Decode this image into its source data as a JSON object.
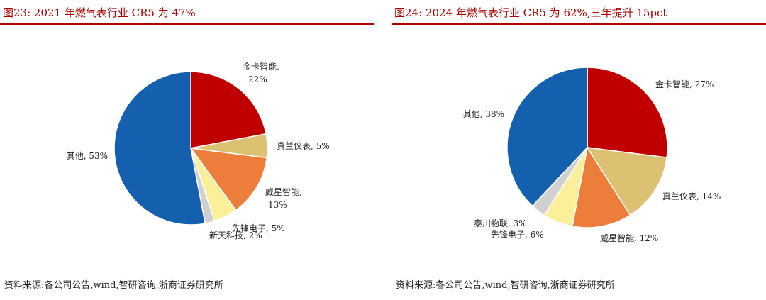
{
  "panels": [
    {
      "title": "图23:  2021 年燃气表行业 CR5 为 47%",
      "source": "资料来源:各公司公告,wind,智研咨询,浙商证券研究所"
    },
    {
      "title": "图24:  2024 年燃气表行业 CR5 为 62%,三年提升 15pct",
      "source": "资料来源:各公司公告,wind,智研咨询,浙商证券研究所"
    }
  ],
  "chart_data": [
    {
      "type": "pie",
      "title": "",
      "slices": [
        {
          "name": "金卡智能",
          "value": 22,
          "label": "22%",
          "color": "#c00000"
        },
        {
          "name": "真兰仪表",
          "value": 5,
          "label": "5%",
          "color": "#dcc173"
        },
        {
          "name": "威星智能",
          "value": 13,
          "label": "13%",
          "color": "#ed7d3a"
        },
        {
          "name": "先锋电子",
          "value": 5,
          "label": "5%",
          "color": "#fbf09a"
        },
        {
          "name": "新天科技",
          "value": 2,
          "label": "2%",
          "color": "#d0d0d0"
        },
        {
          "name": "其他",
          "value": 53,
          "label": "53%",
          "color": "#1460ae"
        }
      ],
      "label_texts": [
        "金卡智能,",
        "22%",
        "真兰仪表, 5%",
        "威星智能,",
        "13%",
        "先锋电子, 5%",
        "新天科技, 2%",
        "其他, 53%"
      ]
    },
    {
      "type": "pie",
      "title": "",
      "slices": [
        {
          "name": "金卡智能",
          "value": 27,
          "label": "27%",
          "color": "#c00000"
        },
        {
          "name": "真兰仪表",
          "value": 14,
          "label": "14%",
          "color": "#dcc173"
        },
        {
          "name": "威星智能",
          "value": 12,
          "label": "12%",
          "color": "#ed7d3a"
        },
        {
          "name": "先锋电子",
          "value": 6,
          "label": "6%",
          "color": "#fbf09a"
        },
        {
          "name": "泰川物联",
          "value": 3,
          "label": "3%",
          "color": "#d0d0d0"
        },
        {
          "name": "其他",
          "value": 38,
          "label": "38%",
          "color": "#1460ae"
        }
      ],
      "label_texts": [
        "金卡智能, 27%",
        "真兰仪表, 14%",
        "威星智能, 12%",
        "先锋电子, 6%",
        "泰川物联, 3%",
        "其他, 38%"
      ]
    }
  ]
}
